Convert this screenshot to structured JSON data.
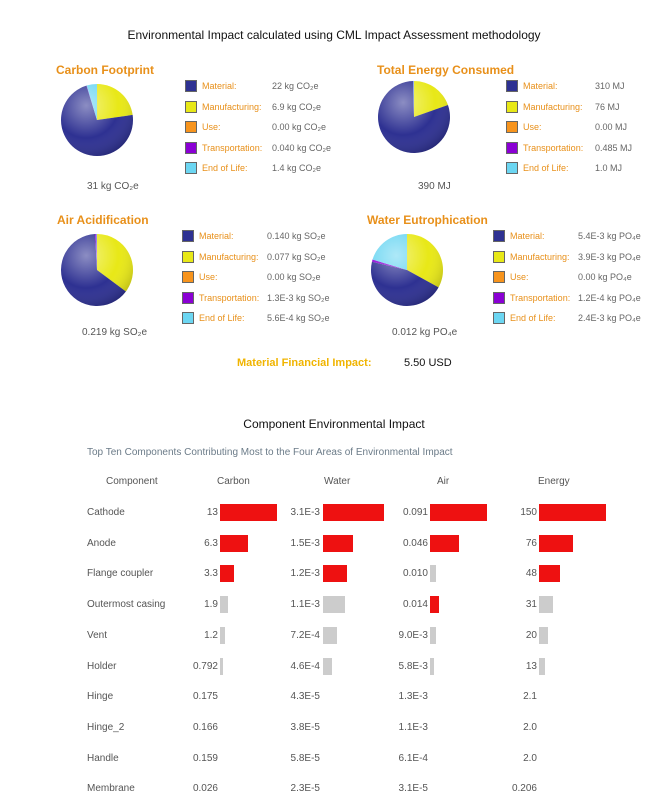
{
  "title": "Environmental Impact calculated using CML Impact Assessment methodology",
  "colors": {
    "material": "#2e3192",
    "manufacturing": "#e8e817",
    "use": "#f7941d",
    "transportation": "#8a00d4",
    "end_of_life": "#6cd6f2",
    "accent": "#e8901a",
    "bar_red": "#ee1111",
    "bar_gray": "#cccccc"
  },
  "legend_labels": [
    "Material:",
    "Manufacturing:",
    "Use:",
    "Transportation:",
    "End of Life:"
  ],
  "panels": [
    {
      "title": "Carbon Footprint",
      "total": "31 kg CO₂e",
      "values": [
        "22 kg CO₂e",
        "6.9 kg CO₂e",
        "0.00 kg CO₂e",
        "0.040 kg CO₂e",
        "1.4 kg CO₂e"
      ],
      "shares": [
        22,
        6.9,
        0.0,
        0.04,
        1.4
      ]
    },
    {
      "title": "Total Energy Consumed",
      "total": "390 MJ",
      "values": [
        "310 MJ",
        "76 MJ",
        "0.00 MJ",
        "0.485 MJ",
        "1.0 MJ"
      ],
      "shares": [
        310,
        76,
        0.0,
        0.485,
        1.0
      ]
    },
    {
      "title": "Air Acidification",
      "total": "0.219 kg SO₂e",
      "values": [
        "0.140 kg SO₂e",
        "0.077 kg SO₂e",
        "0.00 kg SO₂e",
        "1.3E-3 kg SO₂e",
        "5.6E-4 kg SO₂e"
      ],
      "shares": [
        0.14,
        0.077,
        0.0,
        0.0013,
        0.00056
      ]
    },
    {
      "title": "Water Eutrophication",
      "total": "0.012 kg PO₄e",
      "values": [
        "5.4E-3 kg PO₄e",
        "3.9E-3 kg PO₄e",
        "0.00 kg PO₄e",
        "1.2E-4 kg PO₄e",
        "2.4E-3 kg PO₄e"
      ],
      "shares": [
        0.0054,
        0.0039,
        0.0,
        0.00012,
        0.0024
      ]
    }
  ],
  "financial": {
    "label": "Material Financial Impact:",
    "value": "5.50 USD"
  },
  "component_section": {
    "title": "Component Environmental Impact",
    "subtitle": "Top Ten Components Contributing Most to the Four Areas of Environmental Impact",
    "headers": [
      "Component",
      "Carbon",
      "Water",
      "Air",
      "Energy"
    ],
    "rows": [
      {
        "name": "Cathode",
        "carbon": "13",
        "water": "3.1E-3",
        "air": "0.091",
        "energy": "150"
      },
      {
        "name": "Anode",
        "carbon": "6.3",
        "water": "1.5E-3",
        "air": "0.046",
        "energy": "76"
      },
      {
        "name": "Flange coupler",
        "carbon": "3.3",
        "water": "1.2E-3",
        "air": "0.010",
        "energy": "48"
      },
      {
        "name": "Outermost casing",
        "carbon": "1.9",
        "water": "1.1E-3",
        "air": "0.014",
        "energy": "31"
      },
      {
        "name": "Vent",
        "carbon": "1.2",
        "water": "7.2E-4",
        "air": "9.0E-3",
        "energy": "20"
      },
      {
        "name": "Holder",
        "carbon": "0.792",
        "water": "4.6E-4",
        "air": "5.8E-3",
        "energy": "13"
      },
      {
        "name": "Hinge",
        "carbon": "0.175",
        "water": "4.3E-5",
        "air": "1.3E-3",
        "energy": "2.1"
      },
      {
        "name": "Hinge_2",
        "carbon": "0.166",
        "water": "3.8E-5",
        "air": "1.1E-3",
        "energy": "2.0"
      },
      {
        "name": "Handle",
        "carbon": "0.159",
        "water": "5.8E-5",
        "air": "6.1E-4",
        "energy": "2.0"
      },
      {
        "name": "Membrane",
        "carbon": "0.026",
        "water": "2.3E-5",
        "air": "3.1E-5",
        "energy": "0.206"
      }
    ],
    "bar_highlight": {
      "carbon": [
        "red",
        "red",
        "red",
        "gray",
        "gray",
        "gray"
      ],
      "water": [
        "red",
        "red",
        "red",
        "gray",
        "gray",
        "gray"
      ],
      "air": [
        "red",
        "red",
        "gray",
        "red",
        "gray",
        "gray"
      ],
      "energy": [
        "red",
        "red",
        "red",
        "gray",
        "gray",
        "gray"
      ]
    }
  }
}
